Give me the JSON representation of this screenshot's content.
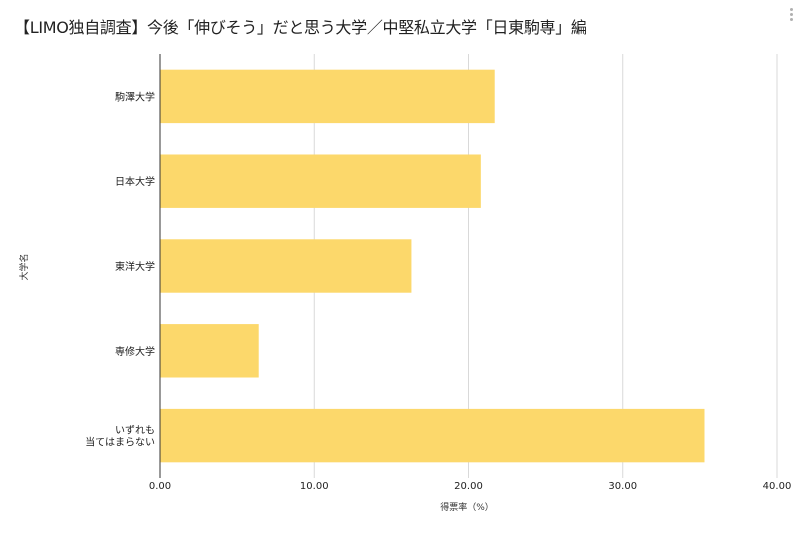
{
  "chart_data": {
    "type": "bar",
    "orientation": "horizontal",
    "title": "【LIMO独自調査】今後「伸びそう」だと思う大学／中堅私立大学「日東駒専」編",
    "categories": [
      [
        "駒澤大学"
      ],
      [
        "日本大学"
      ],
      [
        "東洋大学"
      ],
      [
        "専修大学"
      ],
      [
        "いずれも",
        "当てはまらない"
      ]
    ],
    "values": [
      21.7,
      20.8,
      16.3,
      6.4,
      35.3
    ],
    "xlabel": "得票率（%）",
    "ylabel": "大学名",
    "xlim": [
      0,
      40
    ],
    "xticks": [
      "0.00",
      "10.00",
      "20.00",
      "30.00",
      "40.00"
    ],
    "bar_color": "#fcd86b",
    "grid": "vertical"
  },
  "menu_icon": "more-vertical-icon"
}
